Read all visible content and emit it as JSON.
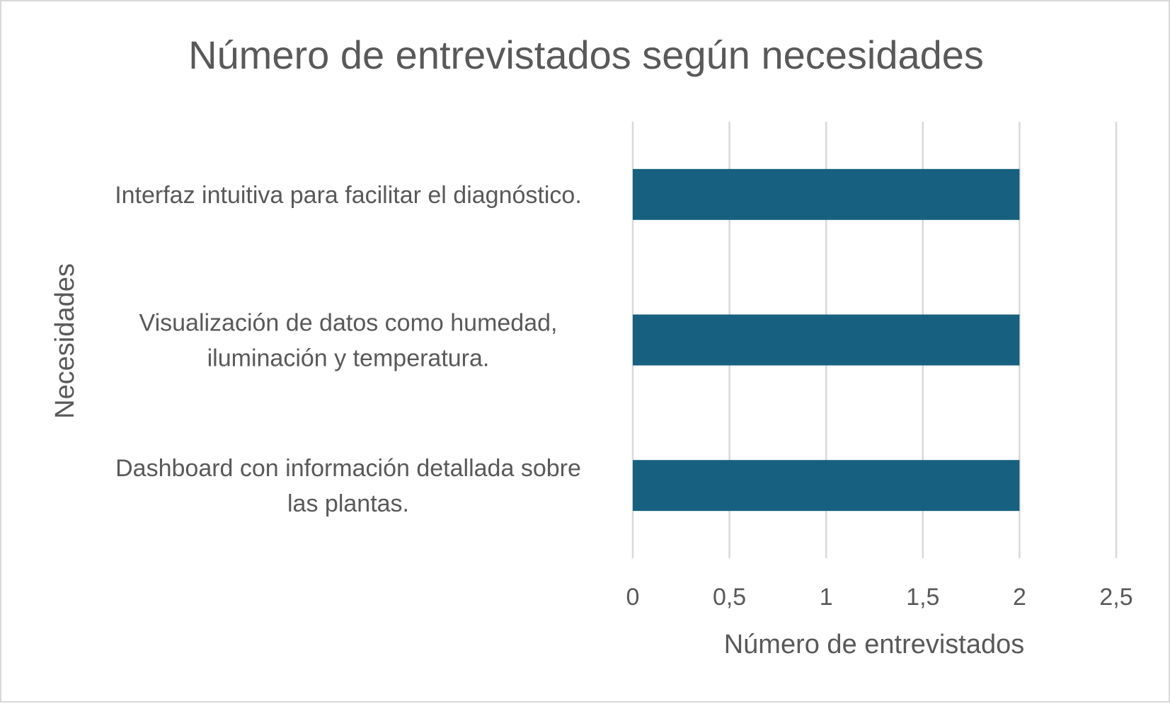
{
  "chart_data": {
    "type": "bar",
    "orientation": "horizontal",
    "title": "Número de entrevistados según necesidades",
    "xlabel": "Número de entrevistados",
    "ylabel": "Necesidades",
    "categories": [
      [
        "Interfaz intuitiva para facilitar el diagnóstico."
      ],
      [
        "Visualización de datos como humedad,",
        "iluminación y temperatura."
      ],
      [
        "Dashboard con información detallada sobre",
        "las plantas."
      ]
    ],
    "values": [
      2,
      2,
      2
    ],
    "xlim": [
      0,
      2.5
    ],
    "ticks": [
      0,
      0.5,
      1,
      1.5,
      2,
      2.5
    ],
    "tick_labels": [
      "0",
      "0,5",
      "1",
      "1,5",
      "2",
      "2,5"
    ],
    "grid": "vertical",
    "legend": "none",
    "bar_color": "#17607f"
  }
}
